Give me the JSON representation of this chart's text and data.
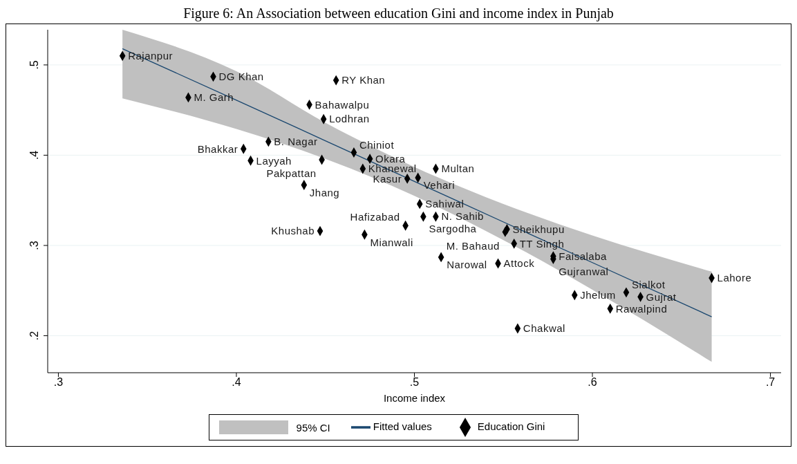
{
  "chart_data": {
    "type": "scatter",
    "title": "Figure 6: An Association between education Gini and income index in Punjab",
    "xlabel": "Income index",
    "xlim": [
      0.294,
      0.706
    ],
    "ylim": [
      0.159,
      0.539
    ],
    "xticks": [
      {
        "value": 0.3,
        "label": ".3"
      },
      {
        "value": 0.4,
        "label": ".4"
      },
      {
        "value": 0.5,
        "label": ".5"
      },
      {
        "value": 0.6,
        "label": ".6"
      },
      {
        "value": 0.7,
        "label": ".7"
      }
    ],
    "yticks": [
      {
        "value": 0.2,
        "label": ".2"
      },
      {
        "value": 0.3,
        "label": ".3"
      },
      {
        "value": 0.4,
        "label": ".4"
      },
      {
        "value": 0.5,
        "label": ".5"
      }
    ],
    "grid": "y",
    "legend": "bottom",
    "annotations": [
      "95% CI"
    ],
    "series": [
      {
        "type": "line",
        "name": "Fitted values",
        "color": "#1a476f",
        "x": [
          0.336,
          0.4,
          0.45,
          0.5,
          0.55,
          0.6,
          0.667
        ],
        "values": [
          0.518,
          0.461,
          0.416,
          0.371,
          0.326,
          0.281,
          0.221
        ],
        "lower": [
          0.463,
          0.429,
          0.396,
          0.355,
          0.306,
          0.251,
          0.171
        ],
        "upper": [
          0.539,
          0.493,
          0.436,
          0.387,
          0.346,
          0.311,
          0.271
        ]
      },
      {
        "type": "scatter",
        "name": "Education Gini",
        "color": "#000000",
        "marker": "diamond",
        "x": [
          0.336,
          0.387,
          0.456,
          0.373,
          0.441,
          0.449,
          0.418,
          0.404,
          0.466,
          0.408,
          0.448,
          0.475,
          0.471,
          0.512,
          0.496,
          0.502,
          0.438,
          0.503,
          0.505,
          0.512,
          0.495,
          0.447,
          0.472,
          0.552,
          0.551,
          0.556,
          0.515,
          0.547,
          0.578,
          0.578,
          0.667,
          0.59,
          0.619,
          0.627,
          0.61,
          0.558
        ],
        "values": [
          0.51,
          0.487,
          0.483,
          0.464,
          0.456,
          0.44,
          0.415,
          0.407,
          0.403,
          0.394,
          0.395,
          0.396,
          0.385,
          0.385,
          0.374,
          0.375,
          0.367,
          0.346,
          0.332,
          0.332,
          0.322,
          0.316,
          0.312,
          0.318,
          0.315,
          0.302,
          0.287,
          0.28,
          0.288,
          0.285,
          0.264,
          0.245,
          0.248,
          0.243,
          0.23,
          0.208
        ],
        "value_labels": [
          "Rajanpur",
          "DG Khan",
          "RY Khan",
          "M. Garh",
          "Bahawalpu",
          "Lodhran",
          "B. Nagar",
          "Bhakkar",
          "Chiniot",
          "Layyah",
          "Pakpattan",
          "Okara",
          "Khanewal",
          "Multan",
          "Kasur",
          "Vehari",
          "Jhang",
          "Sahiwal",
          "Sargodha",
          "N. Sahib",
          "Hafizabad",
          "Khushab",
          "Mianwali",
          "Sheikhupu",
          "M. Bahaud",
          "TT Singh",
          "Narowal",
          "Attock",
          "Faisalaba",
          "Gujranwal",
          "Lahore",
          "Jhelum",
          "Sialkot",
          "Gujrat",
          "Rawalpind",
          "Chakwal"
        ]
      }
    ]
  }
}
